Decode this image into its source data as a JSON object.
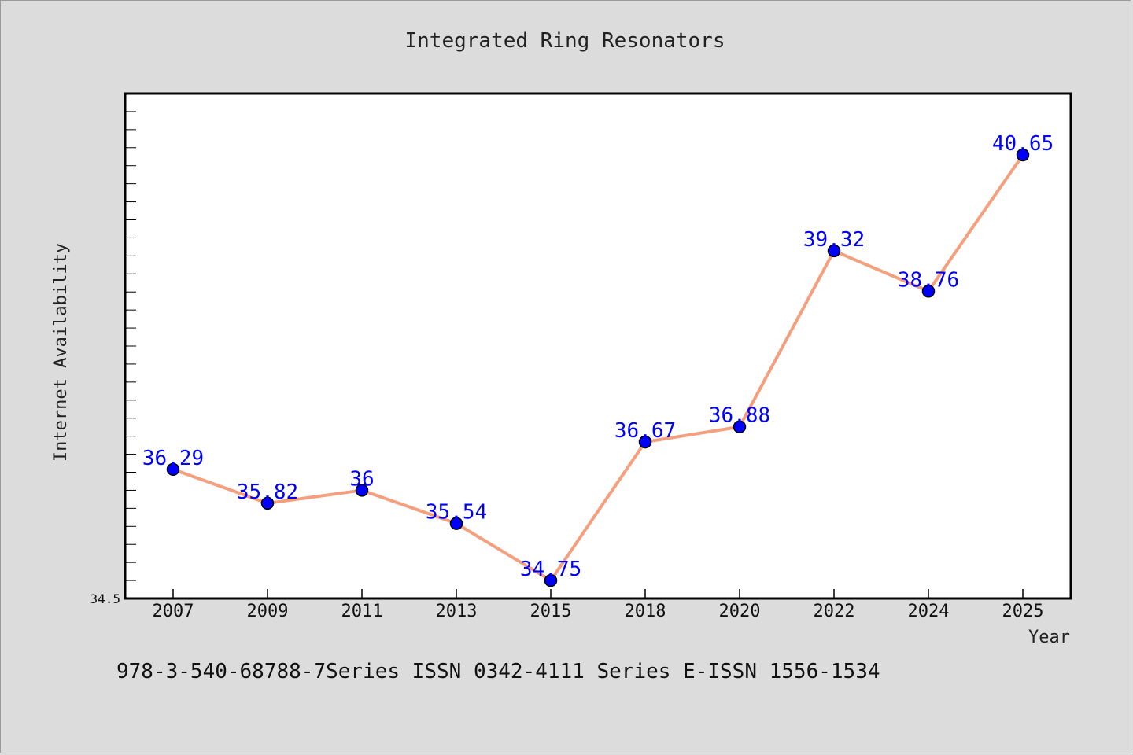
{
  "chart_data": {
    "type": "line",
    "title": "Integrated Ring Resonators",
    "xlabel": "Year",
    "ylabel": "Internet Availability",
    "categories": [
      "2007",
      "2009",
      "2011",
      "2013",
      "2015",
      "2018",
      "2020",
      "2022",
      "2024",
      "2025"
    ],
    "series": [
      {
        "values": [
          36.29,
          35.82,
          36,
          35.54,
          34.75,
          36.67,
          36.88,
          39.32,
          38.76,
          40.65
        ],
        "labels": [
          "36.29",
          "35.82",
          "36",
          "35.54",
          "34.75",
          "36.67",
          "36.88",
          "39.32",
          "38.76",
          "40.65"
        ],
        "line_color": "#f4a07e",
        "marker_color": "#0000ff"
      }
    ],
    "y_tick_labels": [
      "34.5"
    ],
    "ylim": [
      34.5,
      41.5
    ],
    "grid": false,
    "legend": "none"
  },
  "footer": {
    "text": "978-3-540-68788-7Series ISSN 0342-4111 Series E-ISSN 1556-1534"
  },
  "colors": {
    "background": "#dcdcdc",
    "plot_background": "#ffffff",
    "axis": "#000000"
  }
}
